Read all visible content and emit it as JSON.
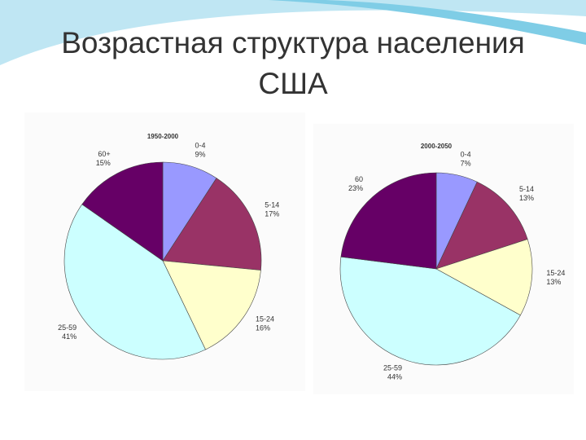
{
  "title": "Возрастная структура населения США",
  "chart_data": [
    {
      "type": "pie",
      "title": "1950-2000",
      "categories": [
        "0-4",
        "5-14",
        "15-24",
        "25-59",
        "60+"
      ],
      "values": [
        9,
        17,
        16,
        41,
        15
      ],
      "value_labels": [
        "9%",
        "17%",
        "16%",
        "41%",
        "15%"
      ],
      "colors": [
        "#9999ff",
        "#993366",
        "#ffffcc",
        "#ccffff",
        "#660066"
      ]
    },
    {
      "type": "pie",
      "title": "2000-2050",
      "categories": [
        "0-4",
        "5-14",
        "15-24",
        "25-59",
        "60"
      ],
      "values": [
        7,
        13,
        13,
        44,
        23
      ],
      "value_labels": [
        "7%",
        "13%",
        "13%",
        "44%",
        "23%"
      ],
      "colors": [
        "#9999ff",
        "#993366",
        "#ffffcc",
        "#ccffff",
        "#660066"
      ]
    }
  ]
}
